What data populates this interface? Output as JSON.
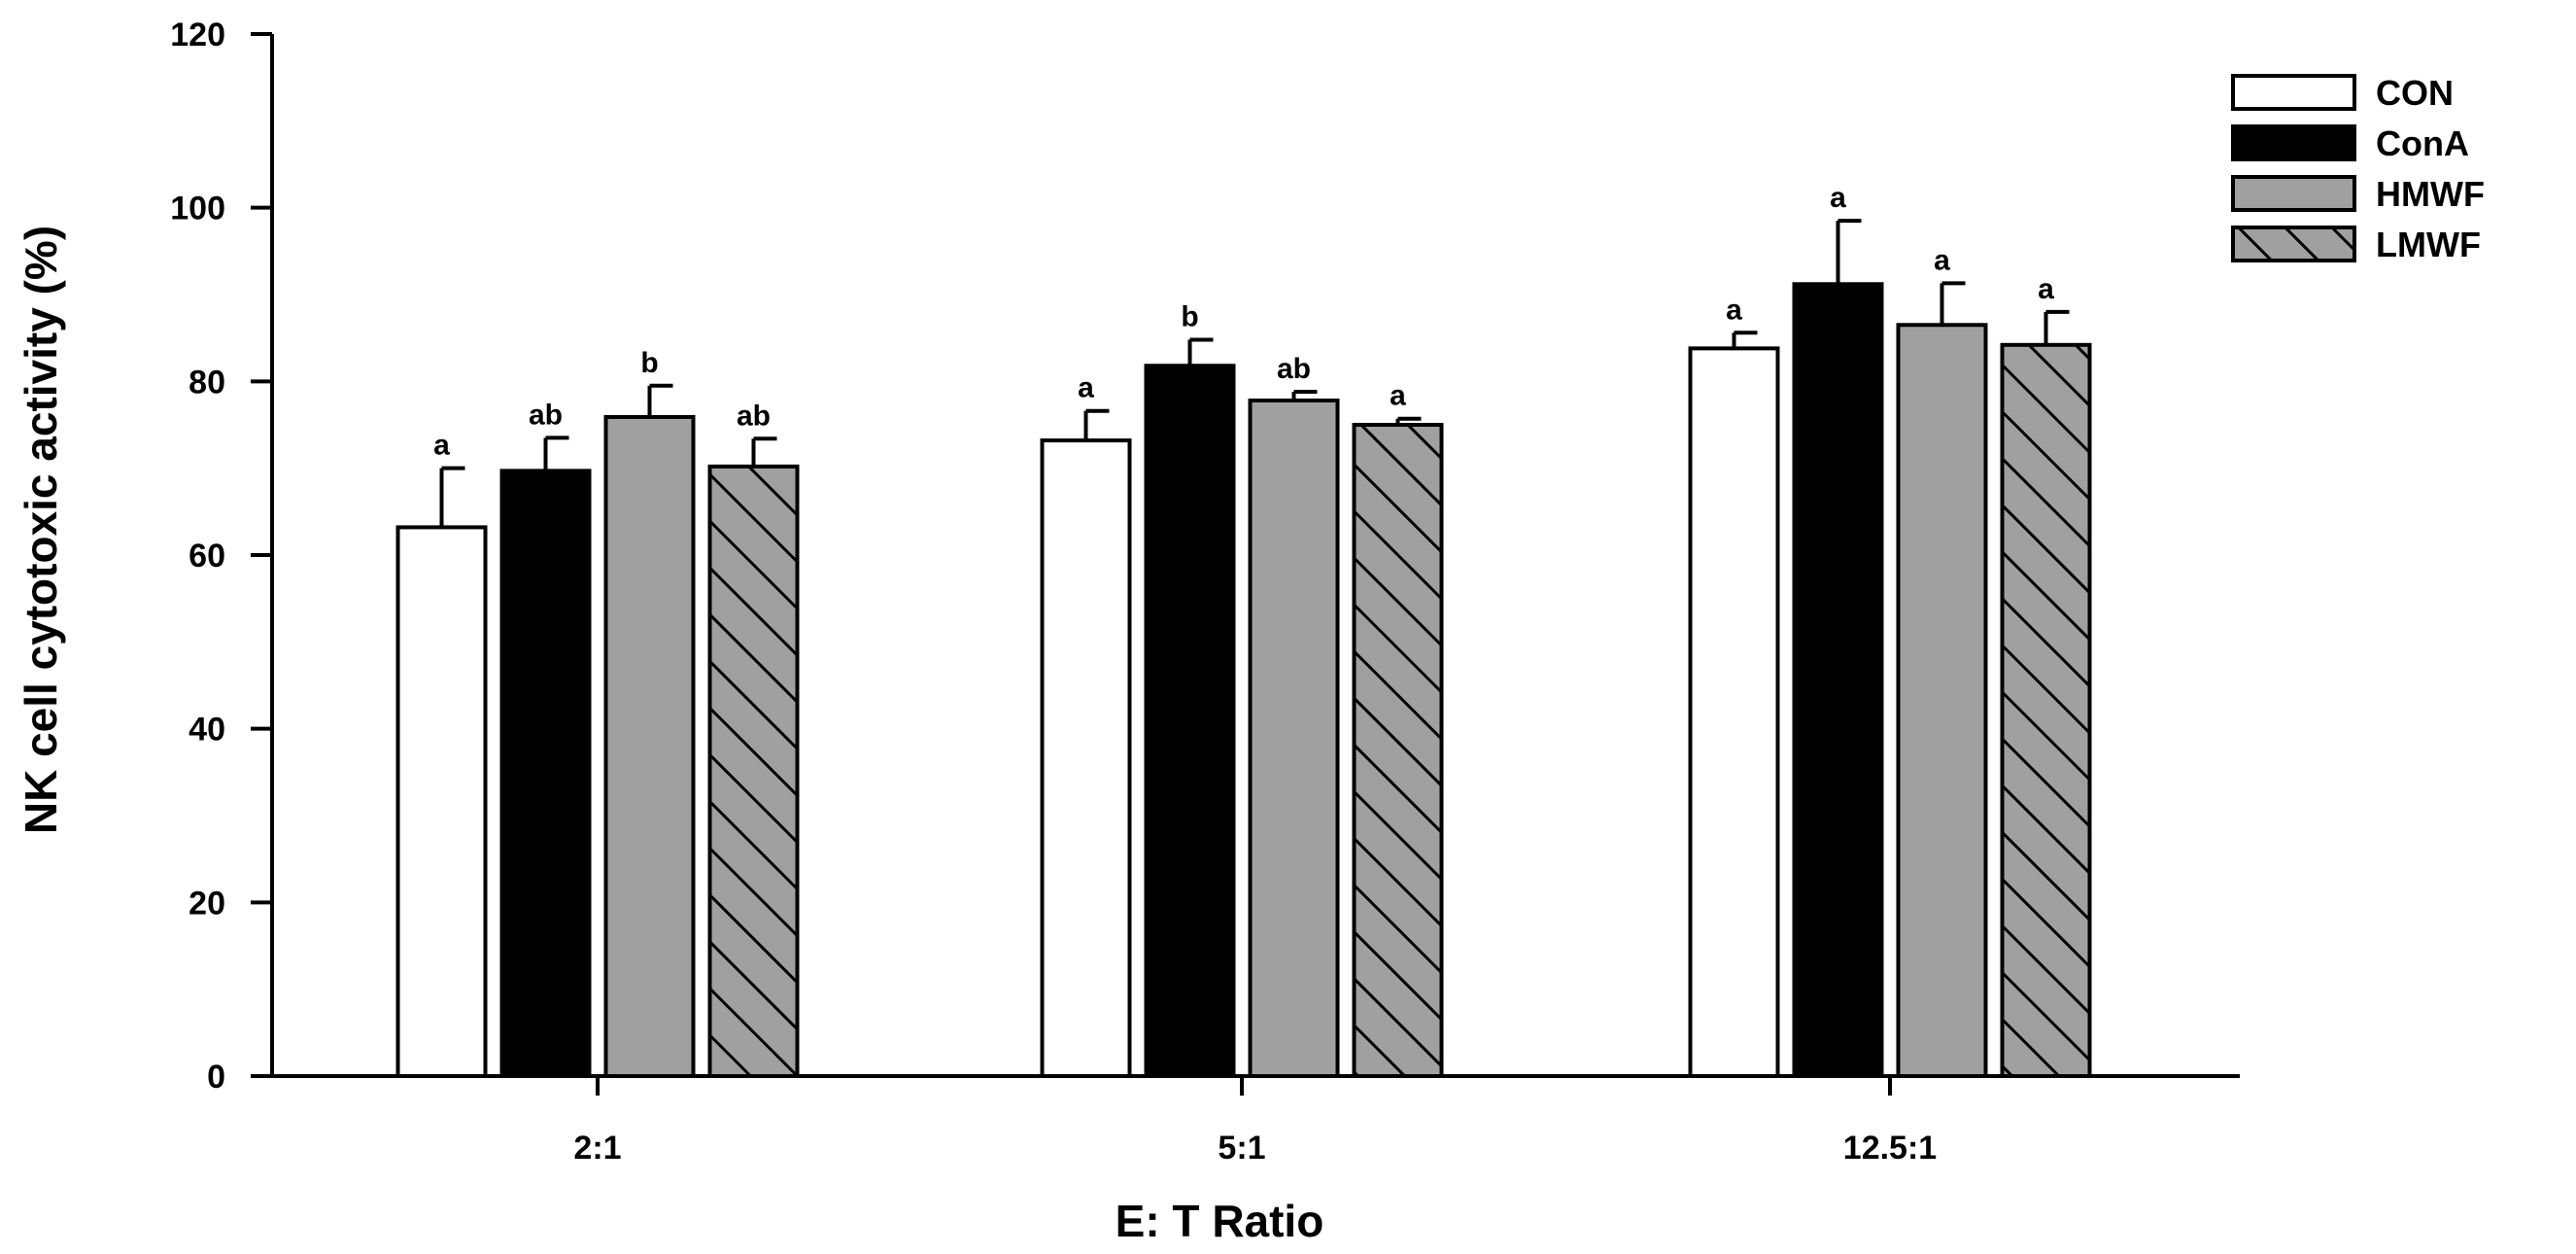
{
  "chart_data": {
    "type": "bar",
    "title": "",
    "xlabel": "E: T Ratio",
    "ylabel": "NK cell cytotoxic activity (%)",
    "ylim": [
      0,
      120
    ],
    "yticks": [
      0,
      20,
      40,
      60,
      80,
      100,
      120
    ],
    "categories": [
      "2:1",
      "5:1",
      "12.5:1"
    ],
    "legend_position": "top-right",
    "series": [
      {
        "name": "CON",
        "fill": "#ffffff",
        "pattern": "none",
        "values": [
          63.2,
          73.2,
          83.8
        ],
        "errors": [
          6.8,
          3.4,
          1.8
        ],
        "letters": [
          "a",
          "a",
          "a"
        ]
      },
      {
        "name": "ConA",
        "fill": "#000000",
        "pattern": "none",
        "values": [
          69.7,
          81.8,
          91.2
        ],
        "errors": [
          3.8,
          3.0,
          7.3
        ],
        "letters": [
          "ab",
          "b",
          "a"
        ]
      },
      {
        "name": "HMWF",
        "fill": "#a0a0a0",
        "pattern": "none",
        "values": [
          75.9,
          77.8,
          86.5
        ],
        "errors": [
          3.6,
          1.0,
          4.8
        ],
        "letters": [
          "b",
          "ab",
          "a"
        ]
      },
      {
        "name": "LMWF",
        "fill": "#a0a0a0",
        "pattern": "hatch",
        "values": [
          70.2,
          75.0,
          84.2
        ],
        "errors": [
          3.2,
          0.7,
          3.8
        ],
        "letters": [
          "ab",
          "a",
          "a"
        ]
      }
    ]
  }
}
